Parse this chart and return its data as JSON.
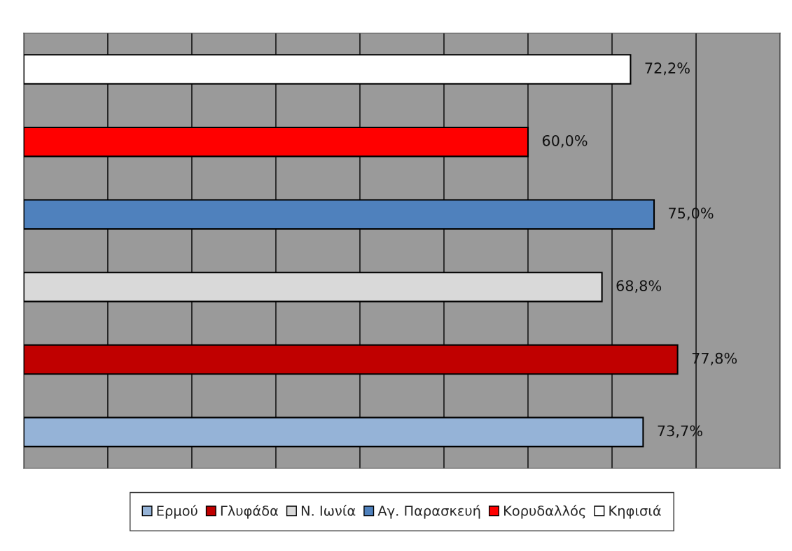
{
  "chart_data": {
    "type": "bar",
    "orientation": "horizontal",
    "stacked": true,
    "categories": [
      null,
      null,
      null,
      null,
      null,
      null
    ],
    "series": [
      {
        "name": "Ερμού",
        "color": "#95b3d7",
        "values": [
          0,
          0,
          0,
          0,
          0,
          73.7
        ],
        "value_labels": [
          null,
          null,
          null,
          null,
          null,
          "73,7%"
        ]
      },
      {
        "name": "Γλυφάδα",
        "color": "#c00000",
        "values": [
          0,
          0,
          0,
          0,
          77.8,
          0
        ],
        "value_labels": [
          null,
          null,
          null,
          null,
          "77,8%",
          null
        ]
      },
      {
        "name": "Ν. Ιωνία",
        "color": "#d9d9d9",
        "values": [
          0,
          0,
          0,
          68.8,
          0,
          0
        ],
        "value_labels": [
          null,
          null,
          null,
          "68,8%",
          null,
          null
        ]
      },
      {
        "name": "Αγ. Παρασκευή",
        "color": "#4f81bd",
        "values": [
          0,
          0,
          75.0,
          0,
          0,
          0
        ],
        "value_labels": [
          null,
          null,
          "75,0%",
          null,
          null,
          null
        ]
      },
      {
        "name": "Κορυδαλλός",
        "color": "#ff0000",
        "values": [
          0,
          60.0,
          0,
          0,
          0,
          0
        ],
        "value_labels": [
          null,
          "60,0%",
          null,
          null,
          null,
          null
        ]
      },
      {
        "name": "Κηφισιά",
        "color": "#ffffff",
        "values": [
          72.2,
          0,
          0,
          0,
          0,
          0
        ],
        "value_labels": [
          "72,2%",
          null,
          null,
          null,
          null,
          null
        ]
      }
    ],
    "xlim": [
      0,
      90
    ],
    "xticks": [
      {
        "value": 0,
        "label": null
      },
      {
        "value": 10,
        "label": null
      },
      {
        "value": 20,
        "label": null
      },
      {
        "value": 30,
        "label": null
      },
      {
        "value": 40,
        "label": null
      },
      {
        "value": 50,
        "label": null
      },
      {
        "value": 60,
        "label": null
      },
      {
        "value": 70,
        "label": null
      },
      {
        "value": 80,
        "label": null
      },
      {
        "value": 90,
        "label": null
      }
    ],
    "grid": "x",
    "legend": "bottom"
  }
}
